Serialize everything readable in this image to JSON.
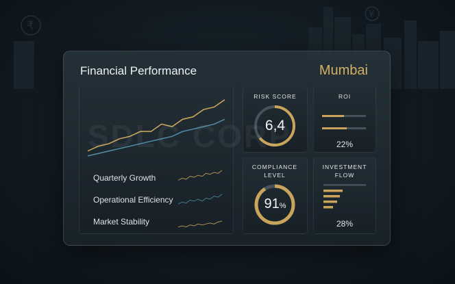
{
  "dashboard": {
    "title": "Financial Performance",
    "city": "Mumbai",
    "watermark": "SDLC CORP"
  },
  "metrics": [
    {
      "label": "Quarterly Growth",
      "color": "#c9a45a"
    },
    {
      "label": "Operational Efficiency",
      "color": "#4f8aa0"
    },
    {
      "label": "Market Stability",
      "color": "#c9a45a"
    }
  ],
  "chart_data": {
    "type": "line",
    "series": [
      {
        "values": [
          2,
          3,
          3.5,
          4.5,
          5,
          6,
          6,
          7.5,
          7,
          8.5,
          9,
          10.5,
          11,
          12.5
        ]
      },
      {
        "values": [
          1,
          1.5,
          2,
          2.5,
          3,
          3.5,
          4,
          4.5,
          5,
          6,
          6.5,
          7,
          7.5,
          8.5
        ]
      }
    ],
    "ylim": [
      0,
      14
    ]
  },
  "risk": {
    "title": "RISK SCORE",
    "value": "6,4",
    "fraction": 0.64
  },
  "roi": {
    "title": "ROI",
    "value": "22%",
    "fraction": 0.22
  },
  "compliance": {
    "title": "COMPLIANCE LEVEL",
    "value": "91",
    "unit": "%",
    "fraction": 0.91
  },
  "investment": {
    "title": "INVESTMENT FLOW",
    "value": "28%",
    "fraction": 0.28
  },
  "colors": {
    "gold": "#c9a45a",
    "teal": "#4f8aa0",
    "track": "#46525a"
  }
}
